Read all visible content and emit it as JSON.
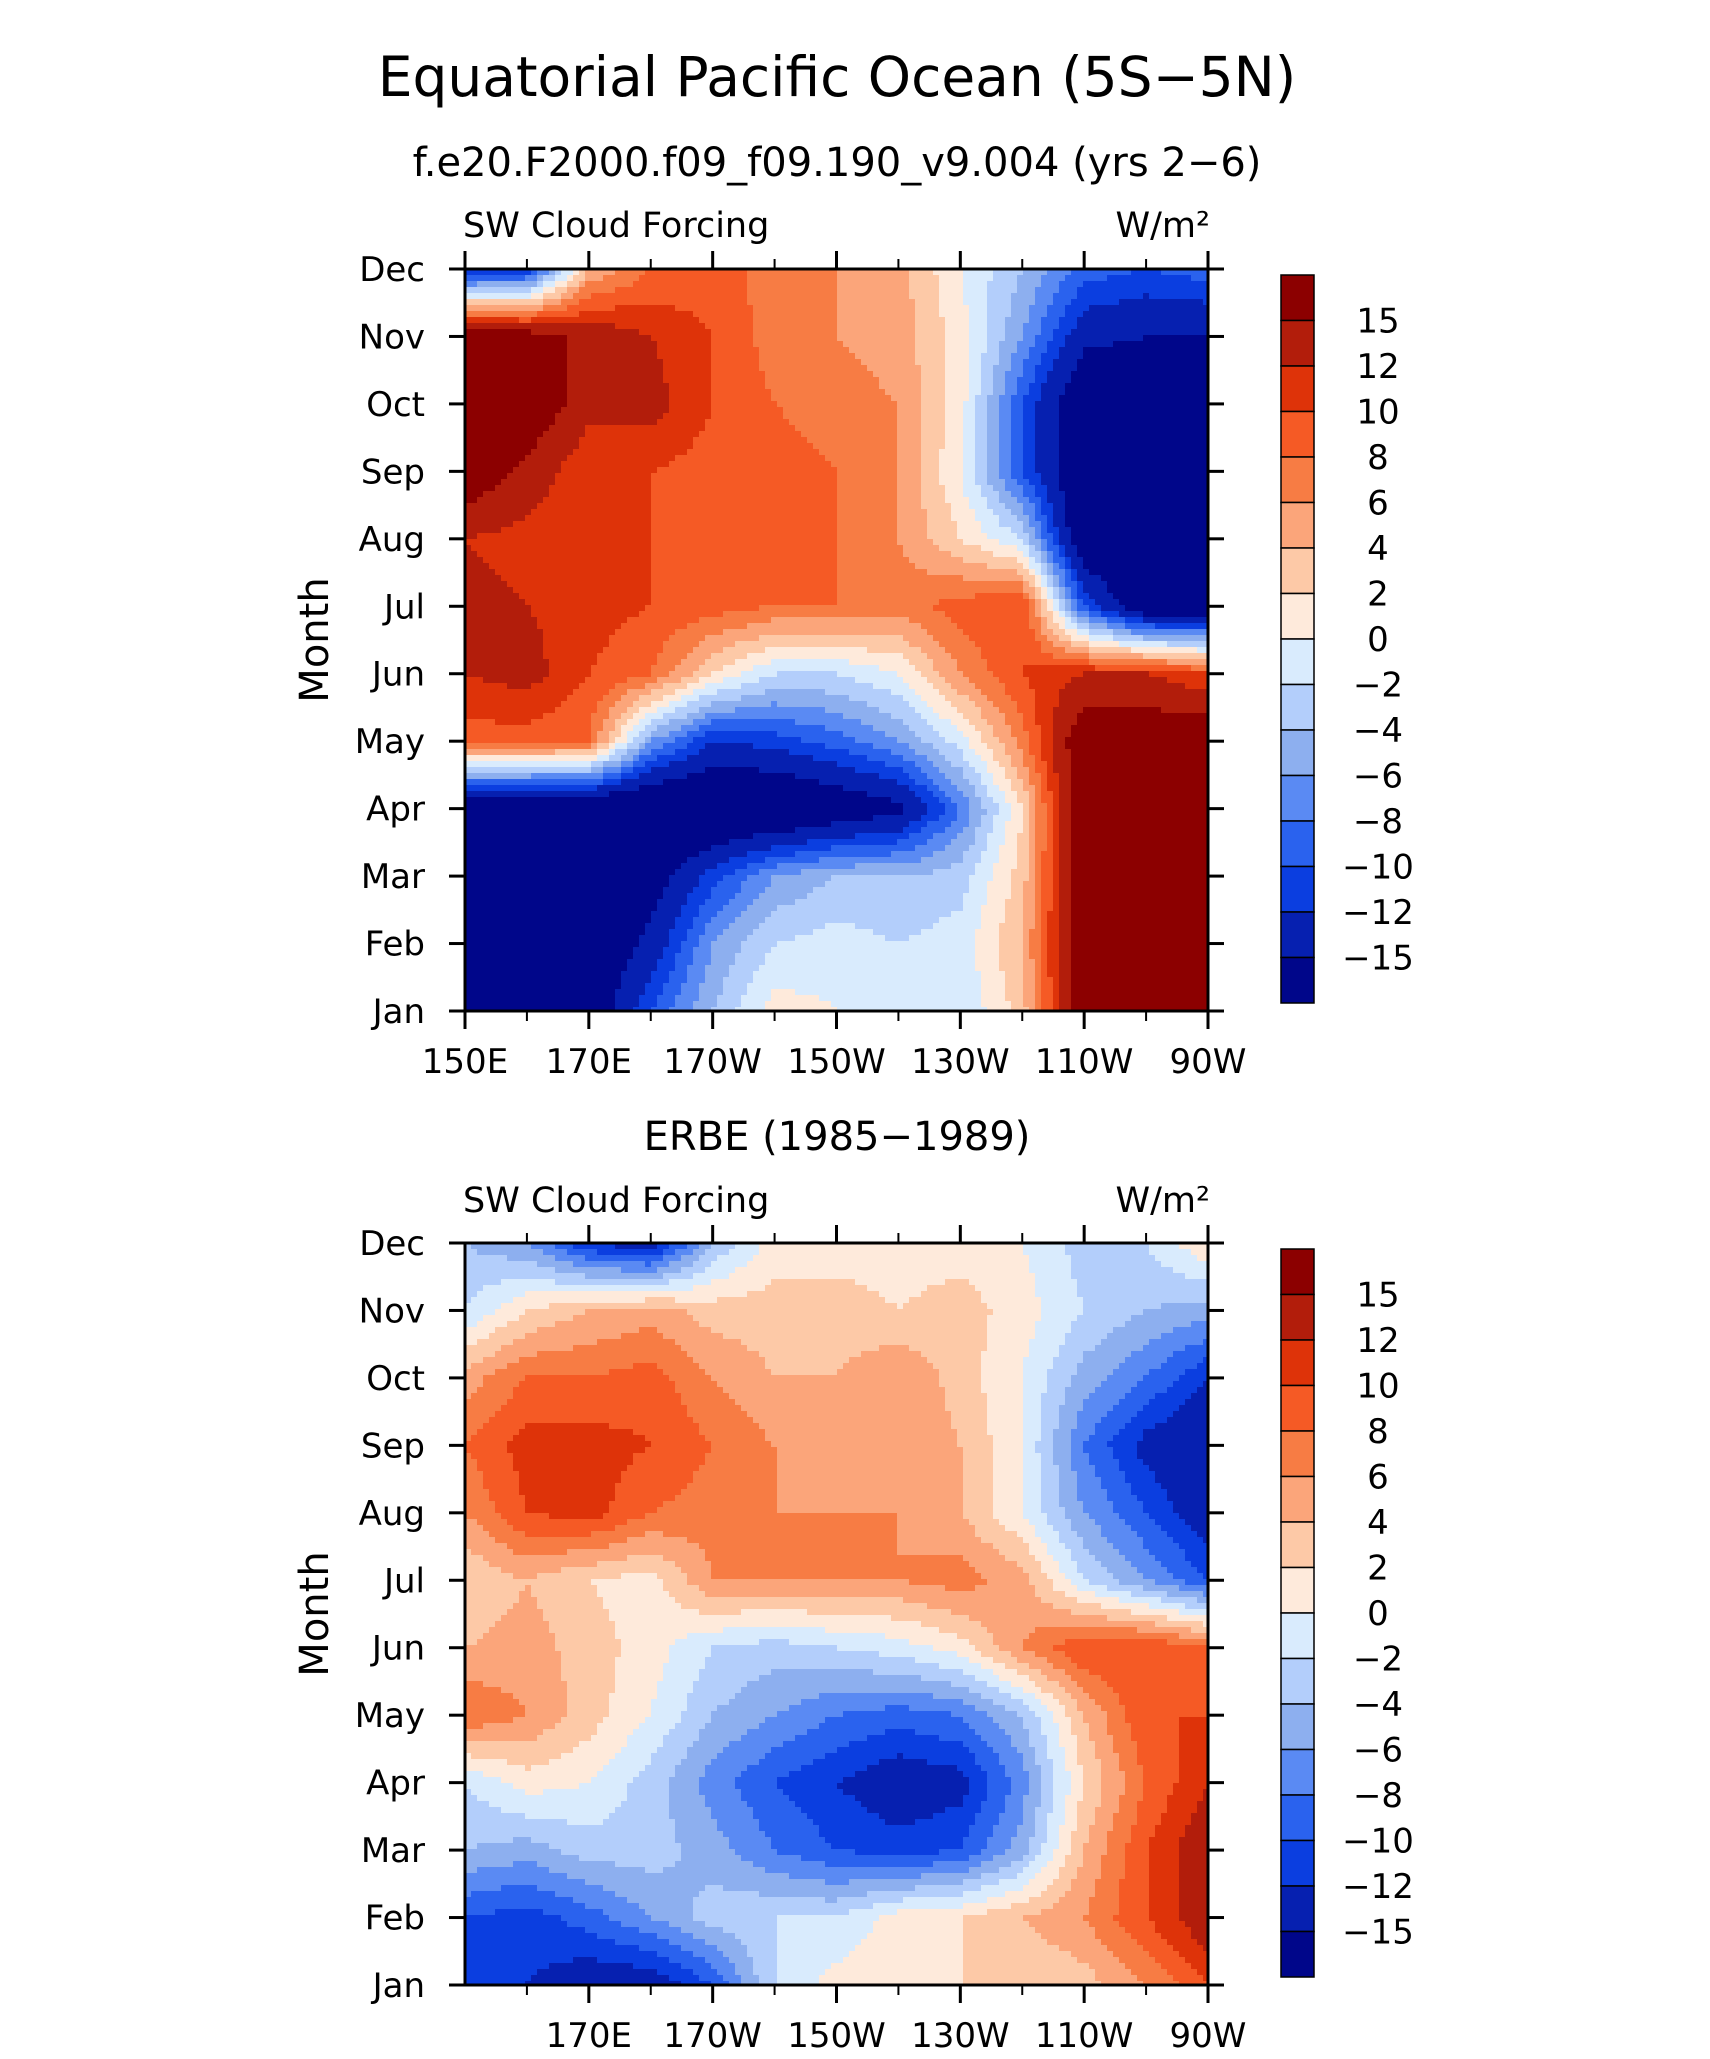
{
  "figure": {
    "title": "Equatorial Pacific Ocean (5S−5N)"
  },
  "colorbar": {
    "colors": [
      "#8c0000",
      "#b21d0b",
      "#de3309",
      "#f55a25",
      "#f77c44",
      "#fba57a",
      "#fdc9a7",
      "#feeadb",
      "#d9ebfd",
      "#b3cefb",
      "#8dafef",
      "#5a8af3",
      "#2a62ee",
      "#0b3ee0",
      "#0620b0",
      "#00068a"
    ],
    "labels": [
      "15",
      "12",
      "10",
      "8",
      "6",
      "4",
      "2",
      "0",
      "−2",
      "−4",
      "−6",
      "−8",
      "−10",
      "−12",
      "−15"
    ]
  },
  "chart_data": [
    {
      "type": "heatmap",
      "title": "f.e20.F2000.f09_f09.190_v9.004 (yrs 2−6)",
      "left_label": "SW Cloud Forcing",
      "units": "W/m²",
      "ylabel": "Month",
      "x_ticks": [
        "150E",
        "170E",
        "170W",
        "150W",
        "130W",
        "110W",
        "90W"
      ],
      "y_ticks": [
        "Jan",
        "Feb",
        "Mar",
        "Apr",
        "May",
        "Jun",
        "Jul",
        "Aug",
        "Sep",
        "Oct",
        "Nov",
        "Dec"
      ],
      "x_range": [
        "150E",
        "90W"
      ],
      "levels": [
        -15,
        -12,
        -10,
        -8,
        -6,
        -4,
        -2,
        0,
        2,
        4,
        6,
        8,
        10,
        12,
        15
      ],
      "lon": [
        "150E",
        "160E",
        "170E",
        "180",
        "170W",
        "160W",
        "150W",
        "140W",
        "130W",
        "120W",
        "110W",
        "100W",
        "90W"
      ],
      "months": [
        "Jan",
        "Feb",
        "Mar",
        "Apr",
        "May",
        "Jun",
        "Jul",
        "Aug",
        "Sep",
        "Oct",
        "Nov",
        "Dec"
      ],
      "values": [
        [
          -20,
          -20,
          -18,
          -10,
          -4,
          1,
          0,
          -1,
          -2,
          3,
          18,
          18,
          17
        ],
        [
          -20,
          -20,
          -19,
          -14,
          -6,
          -2,
          -1,
          -2,
          -1,
          4,
          18,
          18,
          16
        ],
        [
          -20,
          -20,
          -20,
          -17,
          -11,
          -6,
          -4,
          -4,
          -3,
          3,
          18,
          18,
          18
        ],
        [
          -20,
          -20,
          -20,
          -20,
          -20,
          -20,
          -18,
          -16,
          -8,
          2,
          18,
          18,
          18
        ],
        [
          9,
          9,
          8,
          -6,
          -12,
          -11,
          -9,
          -6,
          -1,
          7,
          18,
          18,
          18
        ],
        [
          12,
          13,
          10,
          8,
          2,
          -2,
          -2,
          0,
          6,
          10,
          12,
          12,
          10
        ],
        [
          13,
          12,
          11,
          10,
          9,
          8,
          8,
          7,
          9,
          10,
          -10,
          -19,
          -19
        ],
        [
          12,
          11,
          10,
          10,
          9,
          9,
          8,
          6,
          2,
          -2,
          -19,
          -19,
          -19
        ],
        [
          18,
          14,
          10,
          10,
          9,
          9,
          8,
          6,
          0,
          -10,
          -19,
          -19,
          -19
        ],
        [
          18,
          18,
          13,
          13,
          10,
          8,
          7,
          6,
          1,
          -10,
          -19,
          -19,
          -19
        ],
        [
          18,
          17,
          14,
          12,
          10,
          7,
          6,
          5,
          1,
          -6,
          -14,
          -15,
          -15
        ],
        [
          -13,
          -12,
          4,
          8,
          9,
          7,
          6,
          5,
          0,
          -4,
          -9,
          -10,
          -9
        ]
      ]
    },
    {
      "type": "heatmap",
      "title": "ERBE (1985−1989)",
      "left_label": "SW Cloud Forcing",
      "units": "W/m²",
      "ylabel": "Month",
      "x_ticks": [
        "170E",
        "170W",
        "150W",
        "130W",
        "110W",
        "90W"
      ],
      "y_ticks": [
        "Jan",
        "Feb",
        "Mar",
        "Apr",
        "May",
        "Jun",
        "Jul",
        "Aug",
        "Sep",
        "Oct",
        "Nov",
        "Dec"
      ],
      "levels": [
        -15,
        -12,
        -10,
        -8,
        -6,
        -4,
        -2,
        0,
        2,
        4,
        6,
        8,
        10,
        12,
        15
      ],
      "lon": [
        "150E",
        "160E",
        "170E",
        "180",
        "170W",
        "160W",
        "150W",
        "140W",
        "130W",
        "120W",
        "110W",
        "100W",
        "90W"
      ],
      "months": [
        "Jan",
        "Feb",
        "Mar",
        "Apr",
        "May",
        "Jun",
        "Jul",
        "Aug",
        "Sep",
        "Oct",
        "Nov",
        "Dec"
      ],
      "values": [
        [
          -10,
          -12,
          -14,
          -14,
          -10,
          -2,
          1,
          2,
          2,
          2,
          3,
          6,
          10
        ],
        [
          -10,
          -11,
          -9,
          -6,
          -3,
          -2,
          -2,
          1,
          2,
          4,
          6,
          10,
          14
        ],
        [
          -4,
          -5,
          -3,
          -3,
          -5,
          -8,
          -10,
          -11,
          -10,
          -5,
          4,
          10,
          14
        ],
        [
          -2,
          1,
          0,
          -3,
          -7,
          -10,
          -12,
          -14,
          -13,
          -7,
          2,
          8,
          12
        ],
        [
          8,
          6,
          3,
          0,
          -4,
          -6,
          -8,
          -9,
          -8,
          -4,
          4,
          10,
          10
        ],
        [
          4,
          5,
          3,
          1,
          -2,
          -3,
          -2,
          -1,
          1,
          6,
          10,
          10,
          8
        ],
        [
          2,
          4,
          2,
          1,
          6,
          6,
          6,
          6,
          7,
          5,
          -2,
          -6,
          -10
        ],
        [
          6,
          10,
          11,
          8,
          7,
          6,
          6,
          6,
          4,
          0,
          -6,
          -10,
          -14
        ],
        [
          8,
          11,
          11,
          10,
          8,
          6,
          5,
          6,
          4,
          0,
          -8,
          -13,
          -15
        ],
        [
          5,
          8,
          8,
          9,
          6,
          4,
          4,
          6,
          3,
          0,
          -5,
          -8,
          -12
        ],
        [
          -2,
          2,
          4,
          5,
          3,
          3,
          3,
          2,
          3,
          1,
          -2,
          -4,
          -5
        ],
        [
          -4,
          -6,
          -12,
          -14,
          -4,
          1,
          1,
          1,
          1,
          0,
          -3,
          -2,
          2
        ]
      ]
    }
  ]
}
